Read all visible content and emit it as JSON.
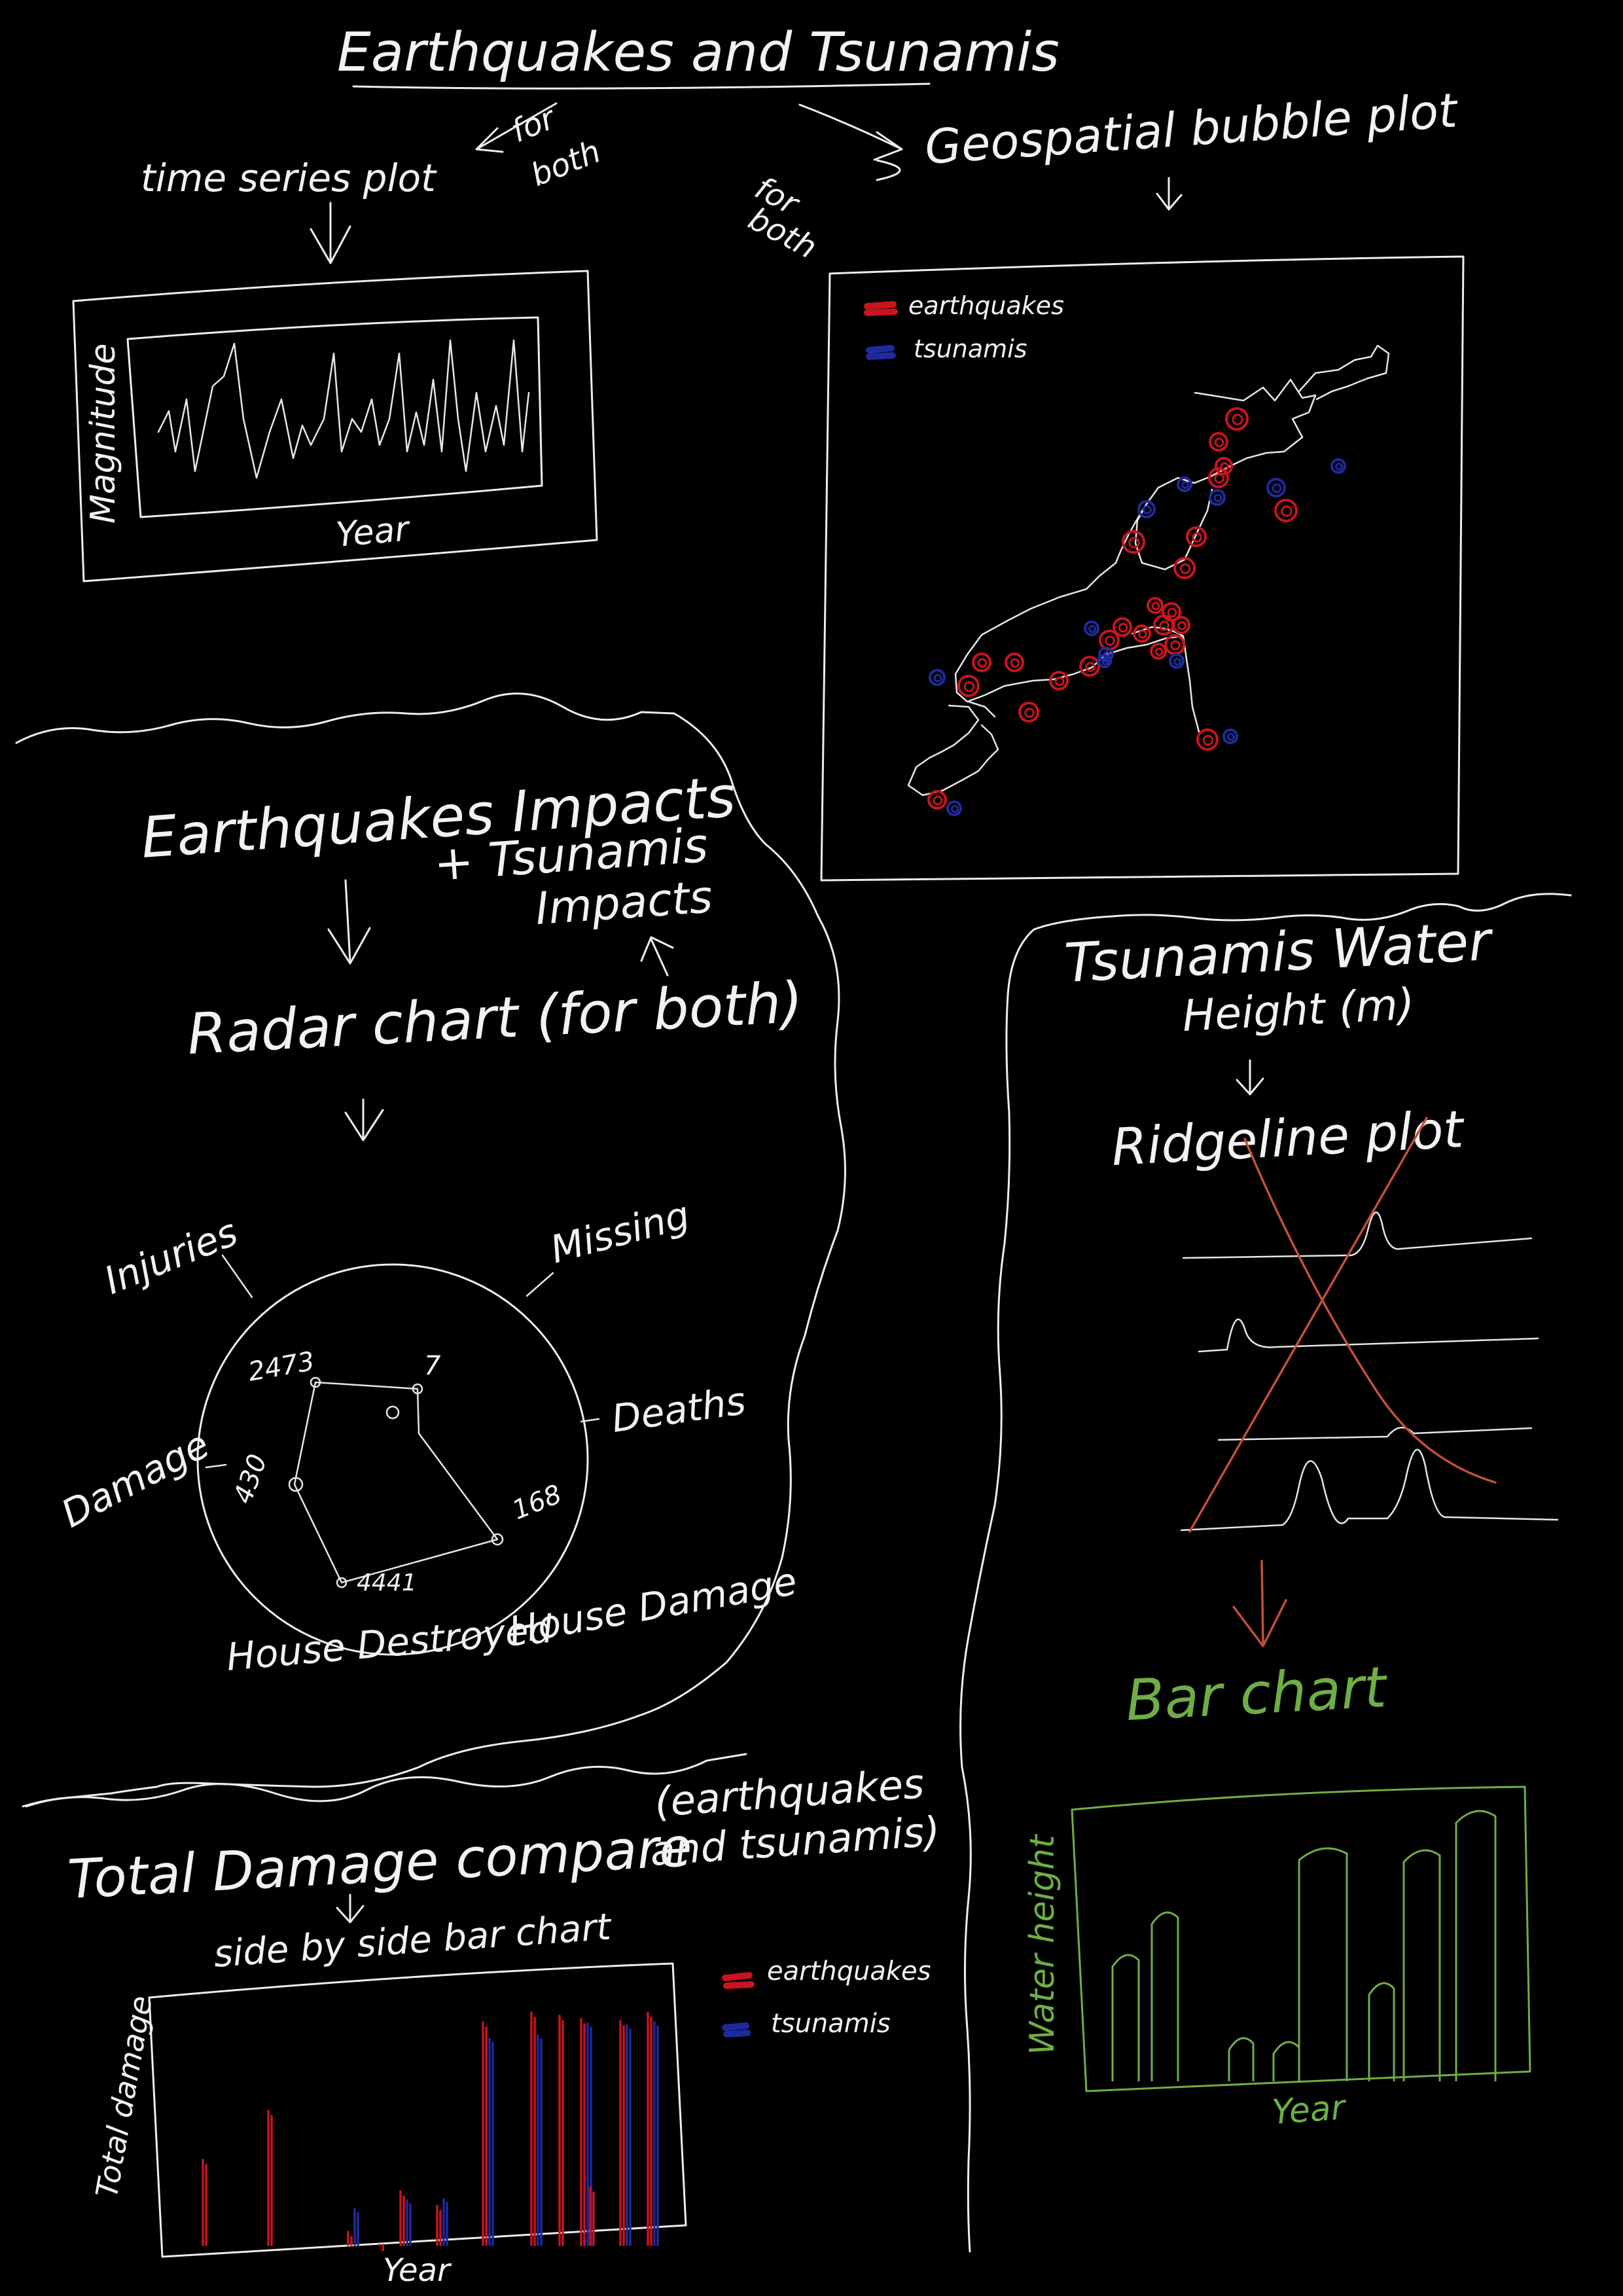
{
  "colors": {
    "background": "#000000",
    "ink": "#f2f2f2",
    "earthquake": "#c8141e",
    "tsunami": "#1e2a9e",
    "green": "#6fae45",
    "strike": "#c0503a"
  },
  "title": "Earthquakes and Tsunamis",
  "top_left": {
    "heading": "time series plot",
    "note_line1": "for",
    "note_line2": "both",
    "y_label": "Magnitude",
    "x_label": "Year"
  },
  "top_right": {
    "note_line1": "for",
    "note_line2": "both",
    "heading": "Geospatial bubble plot",
    "legend": [
      {
        "label": "earthquakes",
        "color": "#c8141e"
      },
      {
        "label": "tsunamis",
        "color": "#1e2a9e"
      }
    ]
  },
  "middle_left": {
    "line1": "Earthquakes Impacts",
    "line2": "+ Tsunamis",
    "line3": "Impacts",
    "chart_name": "Radar chart (for both)",
    "axes": [
      "Injuries",
      "Missing",
      "Deaths",
      "House Damage",
      "House Destroyed",
      "Damage"
    ],
    "value_labels": [
      "2473",
      "7",
      "168",
      "4441",
      "430"
    ]
  },
  "middle_right": {
    "line1": "Tsunamis Water",
    "line2": "Height (m)",
    "rejected_chart": "Ridgeline plot",
    "chosen_chart": "Bar chart",
    "y_label": "Water height",
    "x_label": "Year"
  },
  "bottom_left": {
    "heading": "Total Damage compare",
    "paren_line1": "(earthquakes",
    "paren_line2": "and tsunamis)",
    "chart_name": "side by side bar chart",
    "y_label": "Total damage",
    "x_label": "Year",
    "legend": [
      {
        "label": "earthquakes",
        "color": "#c8141e"
      },
      {
        "label": "tsunamis",
        "color": "#1e2a9e"
      }
    ]
  }
}
